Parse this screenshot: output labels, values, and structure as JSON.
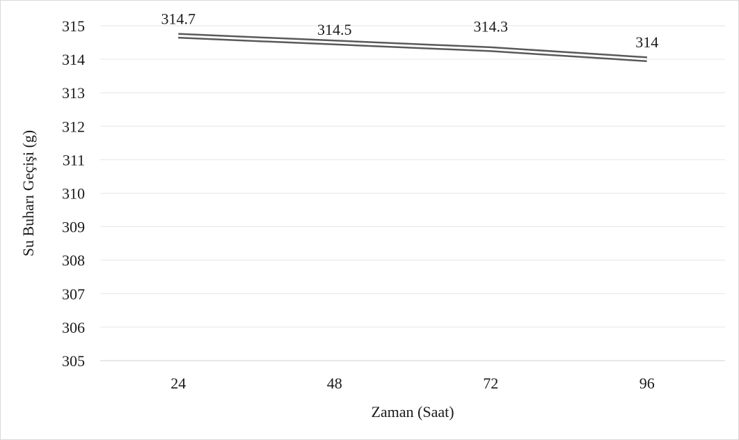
{
  "chart_data": {
    "type": "line",
    "title": "",
    "xlabel": "Zaman (Saat)",
    "ylabel": "Su Buharı Geçişi (g)",
    "categories": [
      "24",
      "48",
      "72",
      "96"
    ],
    "series": [
      {
        "values": [
          314.7,
          314.5,
          314.3,
          314
        ],
        "data_labels": [
          "314.7",
          "314.5",
          "314.3",
          "314"
        ],
        "color": "#595959",
        "style": "double-line"
      }
    ],
    "ylim": [
      305,
      315
    ],
    "y_ticks": [
      "305",
      "306",
      "307",
      "308",
      "309",
      "310",
      "311",
      "312",
      "313",
      "314",
      "315"
    ],
    "grid": "horizontal",
    "gridline_color": "#e6e6e6",
    "legend": "none"
  }
}
